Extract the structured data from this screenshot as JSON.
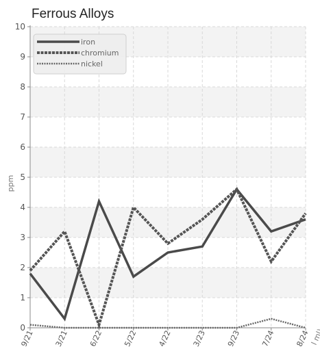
{
  "chart_data": {
    "type": "line",
    "title": "Ferrous Alloys",
    "ylabel": "ppm",
    "xlabel_fragment": "l ml)",
    "ylim": [
      0,
      10
    ],
    "yticks": [
      "0",
      "1",
      "2",
      "3",
      "4",
      "5",
      "6",
      "7",
      "8",
      "9",
      "10"
    ],
    "categories": [
      "9/21",
      "3/21",
      "6/22",
      "5/22",
      "4/22",
      "3/23",
      "9/23",
      "7/24",
      "8/24"
    ],
    "legend_position": "top-left",
    "grid": true,
    "series": [
      {
        "name": "iron",
        "color": "#4a4a4a",
        "style": "solid",
        "values": [
          1.8,
          0.3,
          4.2,
          1.7,
          2.5,
          2.7,
          4.6,
          3.2,
          3.6
        ]
      },
      {
        "name": "chromium",
        "color": "#555555",
        "style": "dashed",
        "values": [
          1.9,
          3.2,
          0.1,
          4.0,
          2.8,
          3.6,
          4.6,
          2.2,
          3.8
        ]
      },
      {
        "name": "nickel",
        "color": "#666666",
        "style": "dotted",
        "values": [
          0.1,
          0.0,
          0.0,
          0.0,
          0.0,
          0.0,
          0.0,
          0.3,
          0.0
        ]
      }
    ]
  }
}
